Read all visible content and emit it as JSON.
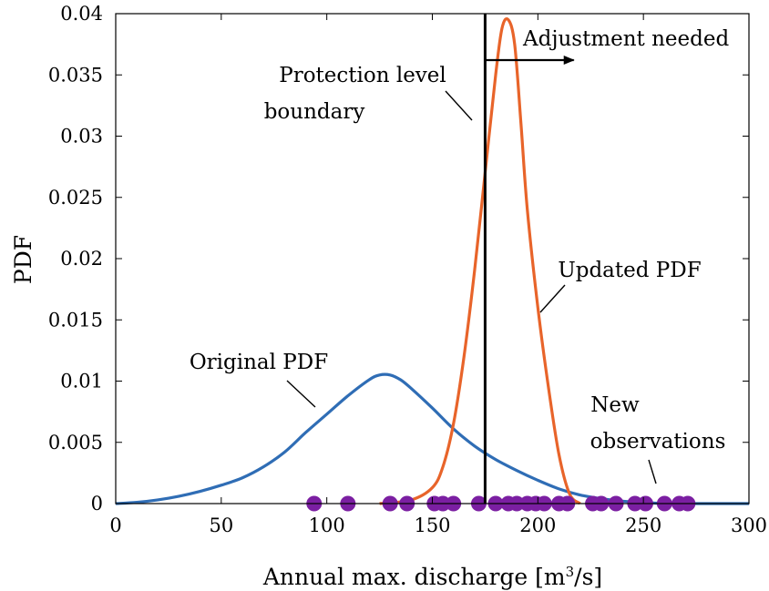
{
  "chart_data": {
    "type": "line",
    "xlabel": "Annual max. discharge [m³/s]",
    "ylabel": "PDF",
    "xlim": [
      0,
      300
    ],
    "ylim": [
      0,
      0.04
    ],
    "xticks": [
      0,
      50,
      100,
      150,
      200,
      250,
      300
    ],
    "yticks": [
      0,
      0.005,
      0.01,
      0.015,
      0.02,
      0.025,
      0.03,
      0.035,
      0.04
    ],
    "xtick_labels": [
      "0",
      "50",
      "100",
      "150",
      "200",
      "250",
      "300"
    ],
    "ytick_labels": [
      "0",
      "0.005",
      "0.01",
      "0.015",
      "0.02",
      "0.025",
      "0.03",
      "0.035",
      "0.04"
    ],
    "grid": false,
    "series": [
      {
        "name": "Original PDF",
        "color": "#2f6db5",
        "x": [
          0,
          10,
          20,
          30,
          40,
          50,
          60,
          70,
          80,
          90,
          100,
          110,
          120,
          125,
          130,
          135,
          140,
          150,
          160,
          170,
          180,
          190,
          200,
          210,
          220,
          230,
          240,
          250,
          260,
          270,
          280,
          290,
          300
        ],
        "y": [
          0,
          0.0001,
          0.0003,
          0.0006,
          0.001,
          0.0015,
          0.0021,
          0.003,
          0.0042,
          0.0058,
          0.0073,
          0.0088,
          0.0101,
          0.0105,
          0.0105,
          0.0101,
          0.0094,
          0.0078,
          0.0061,
          0.0047,
          0.0036,
          0.0027,
          0.0019,
          0.0012,
          0.0007,
          0.0004,
          0.0002,
          0.0001,
          0,
          0,
          0,
          0,
          0
        ]
      },
      {
        "name": "Updated PDF",
        "color": "#e8642a",
        "x": [
          125,
          140,
          150,
          155,
          160,
          165,
          170,
          175,
          180,
          183,
          186,
          189,
          192,
          195,
          200,
          205,
          210,
          215,
          220
        ],
        "y": [
          0,
          0.0003,
          0.0013,
          0.003,
          0.0065,
          0.012,
          0.019,
          0.027,
          0.035,
          0.0388,
          0.0395,
          0.0375,
          0.031,
          0.024,
          0.016,
          0.0095,
          0.004,
          0.0008,
          0
        ]
      }
    ],
    "observations": {
      "name": "New observations",
      "color": "#7b1fa2",
      "x": [
        94,
        110,
        130,
        138,
        151,
        155,
        160,
        172,
        180,
        186,
        190,
        195,
        199,
        203,
        210,
        214,
        226,
        230,
        237,
        246,
        251,
        260,
        267,
        271
      ],
      "y": [
        0,
        0,
        0,
        0,
        0,
        0,
        0,
        0,
        0,
        0,
        0,
        0,
        0,
        0,
        0,
        0,
        0,
        0,
        0,
        0,
        0,
        0,
        0,
        0
      ]
    },
    "vertical_line": {
      "x": 175,
      "color": "#000000"
    },
    "annotations": {
      "protection_line1": "Protection level",
      "protection_line2": "boundary",
      "adjustment": "Adjustment needed",
      "updated": "Updated PDF",
      "original": "Original PDF",
      "new_obs_line1": "New",
      "new_obs_line2": "observations"
    }
  }
}
